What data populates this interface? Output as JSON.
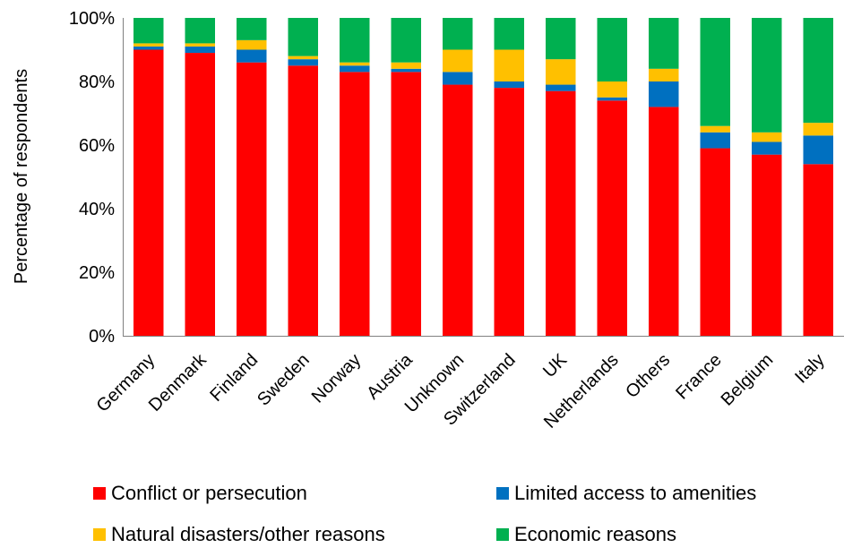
{
  "chart_data": {
    "type": "bar",
    "stacked": true,
    "ylabel": "Percentage of respondents",
    "ylim": [
      0,
      100
    ],
    "yticks": [
      "0%",
      "20%",
      "40%",
      "60%",
      "80%",
      "100%"
    ],
    "grid": false,
    "legend_position": "bottom",
    "categories": [
      "Germany",
      "Denmark",
      "Finland",
      "Sweden",
      "Norway",
      "Austria",
      "Unknown",
      "Switzerland",
      "UK",
      "Netherlands",
      "Others",
      "France",
      "Belgium",
      "Italy"
    ],
    "series": [
      {
        "name": "Conflict or persecution",
        "color": "#ff0000",
        "values": [
          90,
          89,
          86,
          85,
          83,
          83,
          79,
          78,
          77,
          74,
          72,
          59,
          57,
          54
        ]
      },
      {
        "name": "Limited access to amenities",
        "color": "#0070c0",
        "values": [
          1,
          2,
          4,
          2,
          2,
          1,
          4,
          2,
          2,
          1,
          8,
          5,
          4,
          9
        ]
      },
      {
        "name": "Natural disasters/other reasons",
        "color": "#ffc000",
        "values": [
          1,
          1,
          3,
          1,
          1,
          2,
          7,
          10,
          8,
          5,
          4,
          2,
          3,
          4
        ]
      },
      {
        "name": "Economic reasons",
        "color": "#00b050",
        "values": [
          8,
          8,
          7,
          12,
          14,
          14,
          10,
          10,
          13,
          20,
          16,
          34,
          36,
          33
        ]
      }
    ]
  }
}
